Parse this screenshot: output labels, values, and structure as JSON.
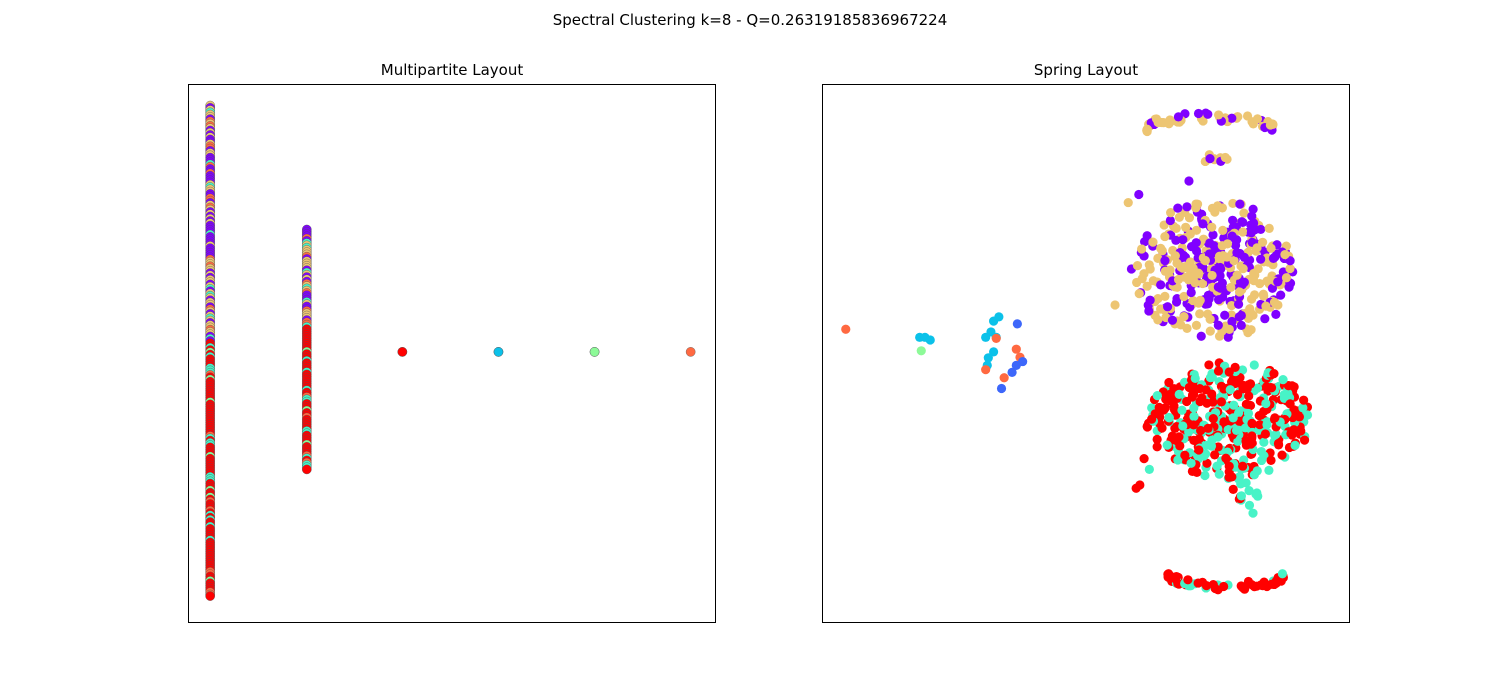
{
  "figure": {
    "title": "Spectral Clustering k=8 - Q=0.26319185836967224"
  },
  "chart_data": [
    {
      "type": "scatter",
      "title": "Multipartite Layout",
      "xlabel": "",
      "ylabel": "",
      "xlim": [
        0,
        100
      ],
      "ylim": [
        0,
        100
      ],
      "grid": false,
      "show_ticks": false,
      "marker": "circle-edged",
      "cluster_colors": [
        "#8000ff",
        "#3d67fa",
        "#0bc1e9",
        "#48f3c7",
        "#8dfa98",
        "#edc572",
        "#ff6941",
        "#ff0000"
      ],
      "layers": [
        {
          "x": 4.2,
          "y_range": [
            5,
            96
          ],
          "clusters_by_band": [
            [
              96,
              52,
              "mixed-purple-tan"
            ],
            [
              52,
              5,
              "mixed-red-green"
            ]
          ]
        },
        {
          "x": 22.5,
          "y_range": [
            28.5,
            73
          ],
          "clusters_by_band": [
            [
              73,
              55,
              "mixed-purple-tan"
            ],
            [
              55,
              28.5,
              "mixed-red-green"
            ]
          ]
        },
        {
          "x": 40.6,
          "y": 50.3,
          "clusters": [
            6,
            7
          ]
        },
        {
          "x": 58.8,
          "y": 50.3,
          "clusters": [
            1,
            2
          ]
        },
        {
          "x": 77.0,
          "y": 50.3,
          "clusters": [
            3,
            4
          ]
        },
        {
          "x": 95.2,
          "y": 50.3,
          "clusters": [
            6
          ]
        }
      ]
    },
    {
      "type": "scatter",
      "title": "Spring Layout",
      "xlabel": "",
      "ylabel": "",
      "xlim": [
        0,
        100
      ],
      "ylim": [
        0,
        100
      ],
      "grid": false,
      "show_ticks": false,
      "marker": "circle",
      "cluster_colors": [
        "#8000ff",
        "#3d67fa",
        "#0bc1e9",
        "#48f3c7",
        "#8dfa98",
        "#edc572",
        "#ff6941",
        "#ff0000"
      ],
      "groups": [
        {
          "name": "top-arc",
          "cx": 73.5,
          "cy": 91.5,
          "rx": 12,
          "ry": 4,
          "shape": "arc",
          "n": 55,
          "clusters": [
            5,
            0
          ],
          "weights": [
            0.75,
            0.25
          ]
        },
        {
          "name": "top-small",
          "cx": 74.5,
          "cy": 86,
          "rx": 2.5,
          "ry": 1,
          "shape": "blob",
          "n": 10,
          "clusters": [
            5,
            0
          ],
          "weights": [
            0.7,
            0.3
          ]
        },
        {
          "name": "upper-blob",
          "cx": 74,
          "cy": 65.5,
          "rx": 15.5,
          "ry": 13,
          "shape": "blob",
          "n": 420,
          "clusters": [
            5,
            0
          ],
          "weights": [
            0.55,
            0.45
          ]
        },
        {
          "name": "lower-blob",
          "cx": 77,
          "cy": 37.5,
          "rx": 15.5,
          "ry": 11,
          "shape": "blob",
          "n": 420,
          "clusters": [
            7,
            3
          ],
          "weights": [
            0.62,
            0.38
          ]
        },
        {
          "name": "mid-scatter",
          "cx": 79,
          "cy": 23,
          "rx": 4,
          "ry": 3.5,
          "shape": "blob",
          "n": 14,
          "clusters": [
            3,
            7
          ],
          "weights": [
            0.5,
            0.5
          ]
        },
        {
          "name": "bottom-arc",
          "cx": 76.5,
          "cy": 9,
          "rx": 11,
          "ry": 3.5,
          "shape": "arc-down",
          "n": 60,
          "clusters": [
            7,
            3
          ],
          "weights": [
            0.85,
            0.15
          ]
        }
      ],
      "points": [
        {
          "x": 4.5,
          "y": 54.5,
          "cluster": 6
        },
        {
          "x": 18.5,
          "y": 53.0,
          "cluster": 2
        },
        {
          "x": 19.5,
          "y": 53.0,
          "cluster": 2
        },
        {
          "x": 20.5,
          "y": 52.5,
          "cluster": 2
        },
        {
          "x": 18.8,
          "y": 50.5,
          "cluster": 4
        },
        {
          "x": 32.5,
          "y": 56.0,
          "cluster": 2
        },
        {
          "x": 33.5,
          "y": 56.8,
          "cluster": 2
        },
        {
          "x": 32.0,
          "y": 54.0,
          "cluster": 2
        },
        {
          "x": 33.0,
          "y": 53.0,
          "cluster": 2
        },
        {
          "x": 31.0,
          "y": 53.0,
          "cluster": 2
        },
        {
          "x": 32.5,
          "y": 50.3,
          "cluster": 2
        },
        {
          "x": 31.5,
          "y": 49.2,
          "cluster": 2
        },
        {
          "x": 31.3,
          "y": 47.8,
          "cluster": 2
        },
        {
          "x": 33.0,
          "y": 52.8,
          "cluster": 6
        },
        {
          "x": 31.0,
          "y": 47.0,
          "cluster": 6
        },
        {
          "x": 36.8,
          "y": 50.8,
          "cluster": 6
        },
        {
          "x": 37.5,
          "y": 49.3,
          "cluster": 6
        },
        {
          "x": 34.5,
          "y": 45.5,
          "cluster": 6
        },
        {
          "x": 37.0,
          "y": 55.5,
          "cluster": 1
        },
        {
          "x": 38.0,
          "y": 48.5,
          "cluster": 1
        },
        {
          "x": 36.8,
          "y": 47.8,
          "cluster": 1
        },
        {
          "x": 36.0,
          "y": 46.5,
          "cluster": 1
        },
        {
          "x": 34.0,
          "y": 43.5,
          "cluster": 1
        },
        {
          "x": 60.0,
          "y": 79.5,
          "cluster": 0
        },
        {
          "x": 55.5,
          "y": 59.0,
          "cluster": 5
        },
        {
          "x": 58.0,
          "y": 78.0,
          "cluster": 5
        },
        {
          "x": 69.5,
          "y": 82.0,
          "cluster": 0
        },
        {
          "x": 59.5,
          "y": 25.0,
          "cluster": 7
        },
        {
          "x": 60.2,
          "y": 25.6,
          "cluster": 7
        },
        {
          "x": 62.0,
          "y": 28.5,
          "cluster": 3
        },
        {
          "x": 61.0,
          "y": 30.5,
          "cluster": 7
        }
      ]
    }
  ]
}
